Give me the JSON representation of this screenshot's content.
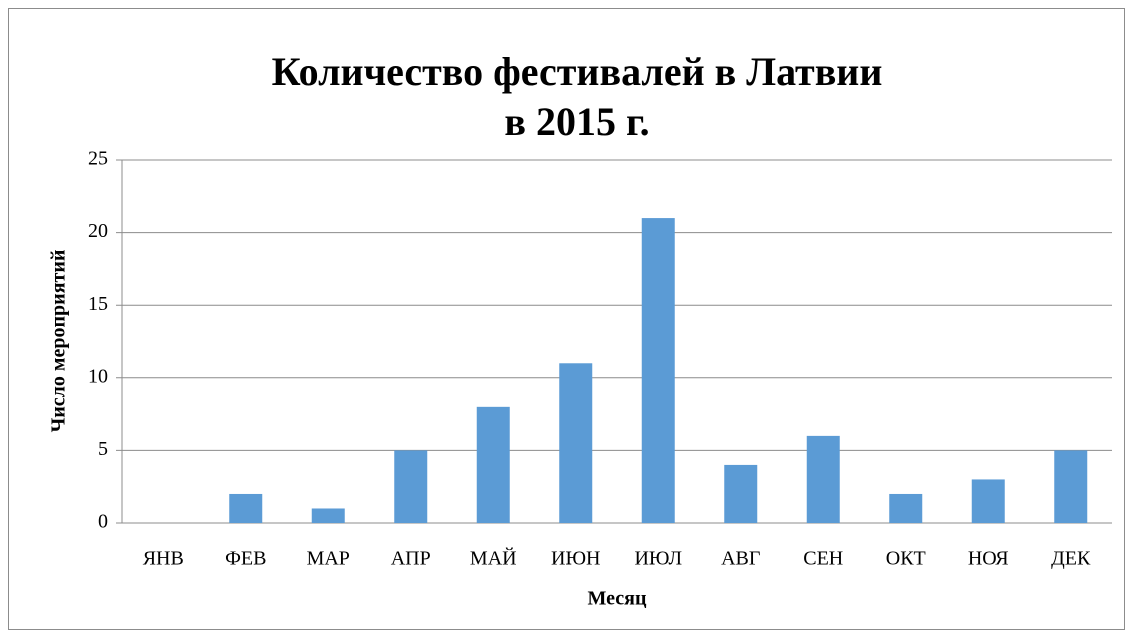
{
  "chart_data": {
    "type": "bar",
    "title": [
      "Количество фестивалей в  Латвии",
      "в 2015 г."
    ],
    "x_label": "Месяц",
    "y_label": "Число мероприятий",
    "categories": [
      "ЯНВ",
      "ФЕВ",
      "МАР",
      "АПР",
      "МАЙ",
      "ИЮН",
      "ИЮЛ",
      "АВГ",
      "СЕН",
      "ОКТ",
      "НОЯ",
      "ДЕК"
    ],
    "values": [
      0,
      2,
      1,
      5,
      8,
      11,
      21,
      4,
      6,
      2,
      3,
      5
    ],
    "color": "#5b9bd5",
    "ylim": [
      0,
      25
    ],
    "yticks": [
      0,
      5,
      10,
      15,
      20,
      25
    ],
    "grid": true
  }
}
